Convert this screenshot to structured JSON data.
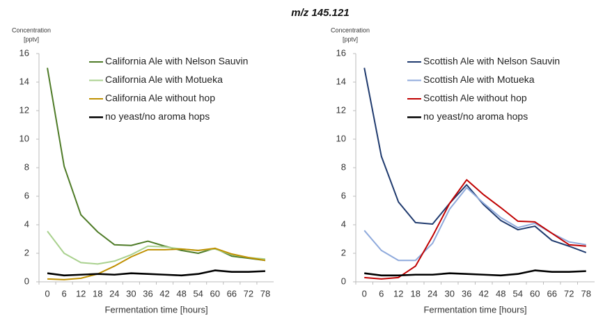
{
  "title": "m/z 145.121",
  "chart_data": [
    {
      "type": "line",
      "ylabel": [
        "Concentration",
        "[pptv]"
      ],
      "xlabel": "Fermentation time [hours]",
      "categories": [
        0,
        6,
        12,
        18,
        24,
        30,
        36,
        42,
        48,
        54,
        60,
        66,
        72,
        78
      ],
      "ylim": [
        0,
        16
      ],
      "yticks": [
        0,
        2,
        4,
        6,
        8,
        10,
        12,
        14,
        16
      ],
      "grid": false,
      "legend": "upper right",
      "series": [
        {
          "name": "California Ale with Nelson Sauvin",
          "color": "#4e7b27",
          "values": [
            15,
            8.1,
            4.7,
            3.5,
            2.6,
            2.55,
            2.85,
            2.5,
            2.2,
            2.0,
            2.35,
            1.8,
            1.65,
            1.5
          ]
        },
        {
          "name": "California Ale with Motueka",
          "color": "#a9d18e",
          "values": [
            3.55,
            2.0,
            1.35,
            1.25,
            1.45,
            1.9,
            2.5,
            2.45,
            2.3,
            2.2,
            2.3,
            1.9,
            1.7,
            1.6
          ]
        },
        {
          "name": "California Ale without hop",
          "color": "#bf9000",
          "values": [
            0.2,
            0.15,
            0.25,
            0.55,
            1.1,
            1.75,
            2.25,
            2.25,
            2.3,
            2.2,
            2.35,
            1.95,
            1.7,
            1.5
          ]
        },
        {
          "name": "no yeast/no aroma hops",
          "color": "#000000",
          "values": [
            0.6,
            0.45,
            0.5,
            0.55,
            0.5,
            0.6,
            0.55,
            0.5,
            0.45,
            0.55,
            0.8,
            0.7,
            0.7,
            0.75
          ]
        }
      ]
    },
    {
      "type": "line",
      "ylabel": [
        "Concentration",
        "[pptv]"
      ],
      "xlabel": "Fermentation time [hours]",
      "categories": [
        0,
        6,
        12,
        18,
        24,
        30,
        36,
        42,
        48,
        54,
        60,
        66,
        72,
        78
      ],
      "ylim": [
        0,
        16
      ],
      "yticks": [
        0,
        2,
        4,
        6,
        8,
        10,
        12,
        14,
        16
      ],
      "grid": false,
      "legend": "upper right",
      "series": [
        {
          "name": "Scottish Ale with Nelson Sauvin",
          "color": "#1f3a6e",
          "values": [
            15,
            8.8,
            5.6,
            4.15,
            4.05,
            5.5,
            6.8,
            5.4,
            4.3,
            3.65,
            3.9,
            2.9,
            2.5,
            2.05
          ]
        },
        {
          "name": "Scottish Ale with Motueka",
          "color": "#8faadc",
          "values": [
            3.6,
            2.2,
            1.5,
            1.5,
            2.7,
            5.1,
            6.6,
            5.5,
            4.5,
            3.8,
            4.1,
            3.4,
            2.8,
            2.6
          ]
        },
        {
          "name": "Scottish Ale without hop",
          "color": "#c00000",
          "values": [
            0.3,
            0.2,
            0.3,
            1.1,
            3.2,
            5.5,
            7.15,
            6.1,
            5.2,
            4.25,
            4.2,
            3.4,
            2.6,
            2.5
          ]
        },
        {
          "name": "no yeast/no aroma hops",
          "color": "#000000",
          "values": [
            0.6,
            0.45,
            0.45,
            0.5,
            0.5,
            0.6,
            0.55,
            0.5,
            0.45,
            0.55,
            0.8,
            0.7,
            0.7,
            0.75
          ]
        }
      ]
    }
  ]
}
